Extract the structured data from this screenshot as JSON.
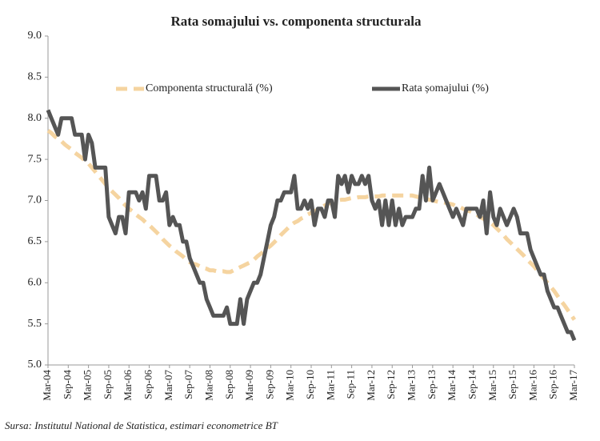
{
  "chart_data": {
    "type": "line",
    "title": "Rata somajului vs. componenta structurala",
    "source": "Sursa: Institutul National de Statistica, estimari econometrice BT",
    "categories": [
      "Mar-04",
      null,
      null,
      null,
      null,
      null,
      "Sep-04",
      null,
      null,
      null,
      null,
      null,
      "Mar-05",
      null,
      null,
      null,
      null,
      null,
      "Sep-05",
      null,
      null,
      null,
      null,
      null,
      "Mar-06",
      null,
      null,
      null,
      null,
      null,
      "Sep-06",
      null,
      null,
      null,
      null,
      null,
      "Mar-07",
      null,
      null,
      null,
      null,
      null,
      "Sep-07",
      null,
      null,
      null,
      null,
      null,
      "Mar-08",
      null,
      null,
      null,
      null,
      null,
      "Sep-08",
      null,
      null,
      null,
      null,
      null,
      "Mar-09",
      null,
      null,
      null,
      null,
      null,
      "Sep-09",
      null,
      null,
      null,
      null,
      null,
      "Mar-10",
      null,
      null,
      null,
      null,
      null,
      "Sep-10",
      null,
      null,
      null,
      null,
      null,
      "Mar-11",
      null,
      null,
      null,
      null,
      null,
      "Sep-11",
      null,
      null,
      null,
      null,
      null,
      "Mar-12",
      null,
      null,
      null,
      null,
      null,
      "Sep-12",
      null,
      null,
      null,
      null,
      null,
      "Mar-13",
      null,
      null,
      null,
      null,
      null,
      "Sep-13",
      null,
      null,
      null,
      null,
      null,
      "Mar-14",
      null,
      null,
      null,
      null,
      null,
      "Sep-14",
      null,
      null,
      null,
      null,
      null,
      "Mar-15",
      null,
      null,
      null,
      null,
      null,
      "Sep-15",
      null,
      null,
      null,
      null,
      null,
      "Mar-16",
      null,
      null,
      null,
      null,
      null,
      "Sep-16",
      null,
      null,
      null,
      null,
      null,
      "Mar-17"
    ],
    "series": [
      {
        "name": "Componenta structurală (%)",
        "color": "#f5d4a0",
        "dashed": true,
        "values": [
          7.85,
          7.82,
          7.78,
          7.75,
          7.72,
          7.68,
          7.65,
          7.62,
          7.58,
          7.55,
          7.52,
          7.48,
          7.45,
          7.4,
          7.35,
          7.3,
          7.25,
          7.2,
          7.15,
          7.11,
          7.07,
          7.03,
          6.98,
          6.94,
          6.9,
          6.87,
          6.83,
          6.8,
          6.77,
          6.73,
          6.7,
          6.66,
          6.62,
          6.58,
          6.53,
          6.49,
          6.45,
          6.42,
          6.38,
          6.35,
          6.32,
          6.28,
          6.25,
          6.23,
          6.22,
          6.2,
          6.18,
          6.17,
          6.15,
          6.15,
          6.14,
          6.14,
          6.14,
          6.13,
          6.13,
          6.15,
          6.17,
          6.19,
          6.21,
          6.23,
          6.25,
          6.28,
          6.32,
          6.35,
          6.38,
          6.42,
          6.45,
          6.49,
          6.53,
          6.58,
          6.62,
          6.66,
          6.7,
          6.73,
          6.75,
          6.78,
          6.8,
          6.83,
          6.85,
          6.87,
          6.89,
          6.92,
          6.94,
          6.96,
          6.98,
          6.99,
          7.0,
          7.01,
          7.01,
          7.02,
          7.03,
          7.03,
          7.04,
          7.04,
          7.04,
          7.05,
          7.05,
          7.05,
          7.05,
          7.06,
          7.06,
          7.06,
          7.06,
          7.06,
          7.06,
          7.06,
          7.06,
          7.06,
          7.06,
          7.05,
          7.04,
          7.03,
          7.02,
          7.01,
          7.0,
          6.99,
          6.98,
          6.98,
          6.97,
          6.96,
          6.95,
          6.93,
          6.92,
          6.9,
          6.88,
          6.87,
          6.85,
          6.83,
          6.8,
          6.78,
          6.75,
          6.73,
          6.7,
          6.66,
          6.62,
          6.58,
          6.53,
          6.49,
          6.45,
          6.41,
          6.37,
          6.33,
          6.28,
          6.24,
          6.2,
          6.15,
          6.1,
          6.05,
          6.0,
          5.95,
          5.9,
          5.84,
          5.78,
          5.73,
          5.67,
          5.61,
          5.55
        ]
      },
      {
        "name": "Rata șomajului (%)",
        "color": "#555555",
        "dashed": false,
        "values": [
          8.1,
          8.0,
          7.9,
          7.8,
          8.0,
          8.0,
          8.0,
          8.0,
          7.8,
          7.8,
          7.8,
          7.5,
          7.8,
          7.7,
          7.4,
          7.4,
          7.4,
          7.4,
          6.8,
          6.7,
          6.6,
          6.8,
          6.8,
          6.6,
          7.1,
          7.1,
          7.1,
          7.0,
          7.1,
          6.9,
          7.3,
          7.3,
          7.3,
          7.0,
          7.0,
          7.1,
          6.7,
          6.8,
          6.7,
          6.7,
          6.5,
          6.5,
          6.3,
          6.2,
          6.1,
          6.0,
          6.0,
          5.8,
          5.7,
          5.6,
          5.6,
          5.6,
          5.6,
          5.7,
          5.5,
          5.5,
          5.5,
          5.8,
          5.5,
          5.8,
          5.9,
          6.0,
          6.0,
          6.1,
          6.3,
          6.5,
          6.7,
          6.8,
          7.0,
          7.0,
          7.1,
          7.1,
          7.1,
          7.3,
          6.9,
          6.9,
          7.0,
          6.9,
          7.0,
          6.7,
          6.9,
          6.9,
          6.8,
          7.0,
          7.0,
          6.8,
          7.3,
          7.2,
          7.3,
          7.1,
          7.3,
          7.2,
          7.2,
          7.3,
          7.2,
          7.3,
          7.0,
          6.9,
          7.0,
          6.7,
          7.0,
          6.7,
          7.0,
          6.7,
          6.9,
          6.7,
          6.8,
          6.8,
          6.8,
          6.9,
          6.9,
          7.3,
          7.0,
          7.4,
          7.0,
          7.1,
          7.2,
          7.1,
          7.0,
          6.9,
          6.8,
          6.9,
          6.8,
          6.7,
          6.9,
          6.9,
          6.9,
          6.9,
          6.8,
          7.0,
          6.6,
          7.1,
          6.8,
          6.7,
          6.9,
          6.8,
          6.7,
          6.8,
          6.9,
          6.8,
          6.6,
          6.6,
          6.6,
          6.4,
          6.3,
          6.2,
          6.1,
          6.1,
          5.9,
          5.8,
          5.7,
          5.7,
          5.6,
          5.5,
          5.4,
          5.4,
          5.3
        ]
      }
    ],
    "ylim": [
      5.0,
      9.0
    ],
    "yticks": [
      {
        "value": 5.0,
        "label": "5.0"
      },
      5.5,
      {
        "value": 6.0,
        "label": "6.0"
      },
      6.5,
      {
        "value": 7.0,
        "label": "7.0"
      },
      7.5,
      {
        "value": 8.0,
        "label": "8.0"
      },
      8.5,
      {
        "value": 9.0,
        "label": "9.0"
      }
    ],
    "grid": false,
    "legend": "top"
  }
}
